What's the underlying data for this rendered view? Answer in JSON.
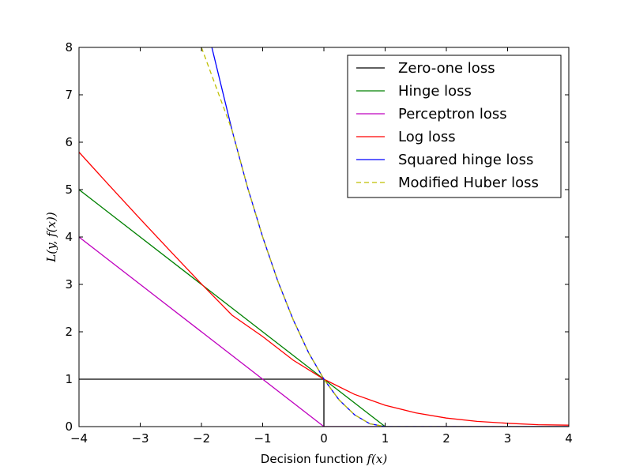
{
  "chart_data": {
    "type": "line",
    "title": "",
    "xlabel_text": "Decision function ",
    "xlabel_math": "f(x)",
    "ylabel_math": "L(y, f(x))",
    "xlim": [
      -4,
      4
    ],
    "ylim": [
      0,
      8
    ],
    "xticks": [
      -4,
      -3,
      -2,
      -1,
      0,
      1,
      2,
      3,
      4
    ],
    "yticks": [
      0,
      1,
      2,
      3,
      4,
      5,
      6,
      7,
      8
    ],
    "xtick_labels": [
      "−4",
      "−3",
      "−2",
      "−1",
      "0",
      "1",
      "2",
      "3",
      "4"
    ],
    "ytick_labels": [
      "0",
      "1",
      "2",
      "3",
      "4",
      "5",
      "6",
      "7",
      "8"
    ],
    "grid": false,
    "legend_position": "top-right",
    "series": [
      {
        "name": "Zero-one loss",
        "color": "#000000",
        "dash": "solid",
        "x": [
          -4,
          0,
          0,
          4
        ],
        "y": [
          1,
          1,
          0,
          0
        ]
      },
      {
        "name": "Hinge loss",
        "color": "#008000",
        "dash": "solid",
        "x": [
          -4,
          1,
          4
        ],
        "y": [
          5,
          0,
          0
        ]
      },
      {
        "name": "Perceptron loss",
        "color": "#bf00bf",
        "dash": "solid",
        "x": [
          -4,
          0,
          4
        ],
        "y": [
          4,
          0,
          0
        ]
      },
      {
        "name": "Log loss",
        "color": "#ff0000",
        "dash": "solid",
        "x": [
          -4,
          -3.5,
          -3,
          -2.5,
          -2,
          -1.5,
          -1,
          -0.5,
          0,
          0.5,
          1,
          1.5,
          2,
          2.5,
          3,
          3.5,
          4
        ],
        "y": [
          5.79,
          5.08,
          4.38,
          3.69,
          3.01,
          2.35,
          1.9,
          1.4,
          1.0,
          0.68,
          0.45,
          0.29,
          0.18,
          0.11,
          0.07,
          0.04,
          0.03
        ]
      },
      {
        "name": "Squared hinge loss",
        "color": "#0000ff",
        "dash": "solid",
        "x": [
          -1.83,
          -1.5,
          -1.25,
          -1,
          -0.75,
          -0.5,
          -0.25,
          0,
          0.25,
          0.5,
          0.75,
          1,
          4
        ],
        "y": [
          8.0,
          6.25,
          5.06,
          4.0,
          3.06,
          2.25,
          1.56,
          1.0,
          0.56,
          0.25,
          0.06,
          0,
          0
        ]
      },
      {
        "name": "Modified Huber loss",
        "color": "#bfbf00",
        "dash": "dashed",
        "x": [
          -2,
          -1.5,
          -1.25,
          -1,
          -0.75,
          -0.5,
          -0.25,
          0,
          0.25,
          0.5,
          0.75,
          1,
          4
        ],
        "y": [
          8.0,
          6.25,
          5.06,
          4.0,
          3.06,
          2.25,
          1.56,
          1.0,
          0.56,
          0.25,
          0.06,
          0,
          0
        ]
      }
    ]
  }
}
